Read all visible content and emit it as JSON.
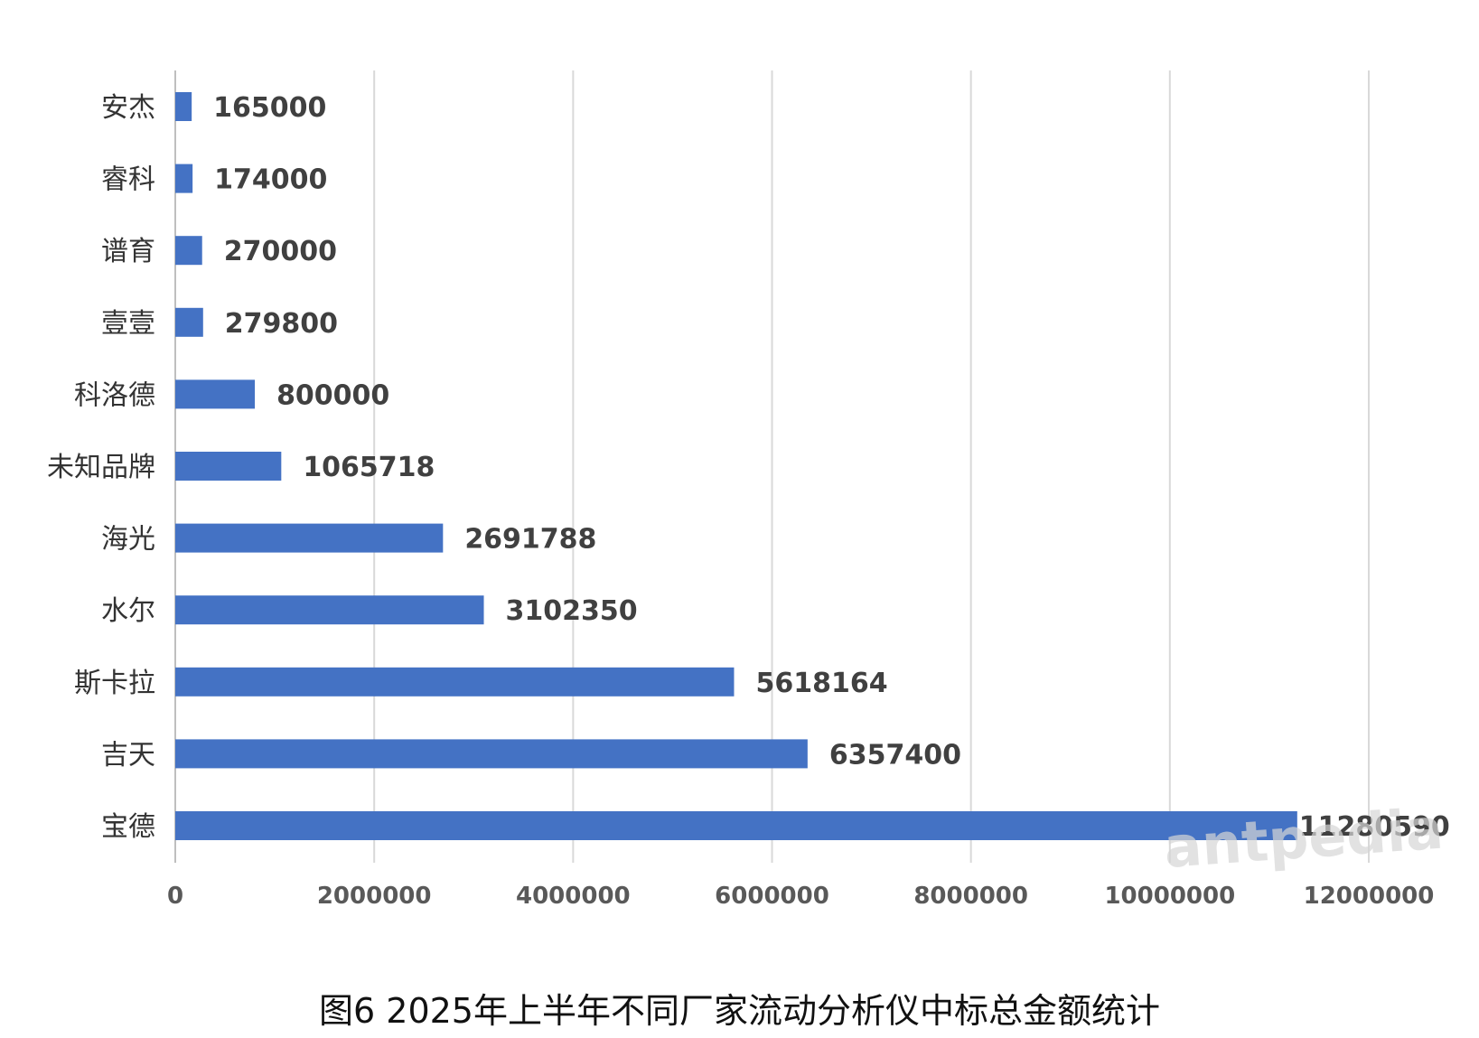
{
  "caption": "图6 2025年上半年不同厂家流动分析仪中标总金额统计",
  "watermark": "antpedia",
  "colors": {
    "bar": "#4472C4",
    "grid": "#d9d9d9",
    "axis": "#bfbfbf"
  },
  "chart_data": {
    "type": "bar",
    "orientation": "horizontal",
    "categories": [
      "安杰",
      "睿科",
      "谱育",
      "壹壹",
      "科洛德",
      "未知品牌",
      "海光",
      "水尔",
      "斯卡拉",
      "吉天",
      "宝德"
    ],
    "values": [
      165000,
      174000,
      270000,
      279800,
      800000,
      1065718,
      2691788,
      3102350,
      5618164,
      6357400,
      11280590
    ],
    "value_labels": [
      "165000",
      "174000",
      "270000",
      "279800",
      "800000",
      "1065718",
      "2691788",
      "3102350",
      "5618164",
      "6357400",
      "11280590"
    ],
    "xlim": [
      0,
      12000000
    ],
    "x_ticks": [
      0,
      2000000,
      4000000,
      6000000,
      8000000,
      10000000,
      12000000
    ],
    "x_tick_labels": [
      "0",
      "2000000",
      "4000000",
      "6000000",
      "8000000",
      "10000000",
      "12000000"
    ],
    "grid": true,
    "legend": "none"
  }
}
